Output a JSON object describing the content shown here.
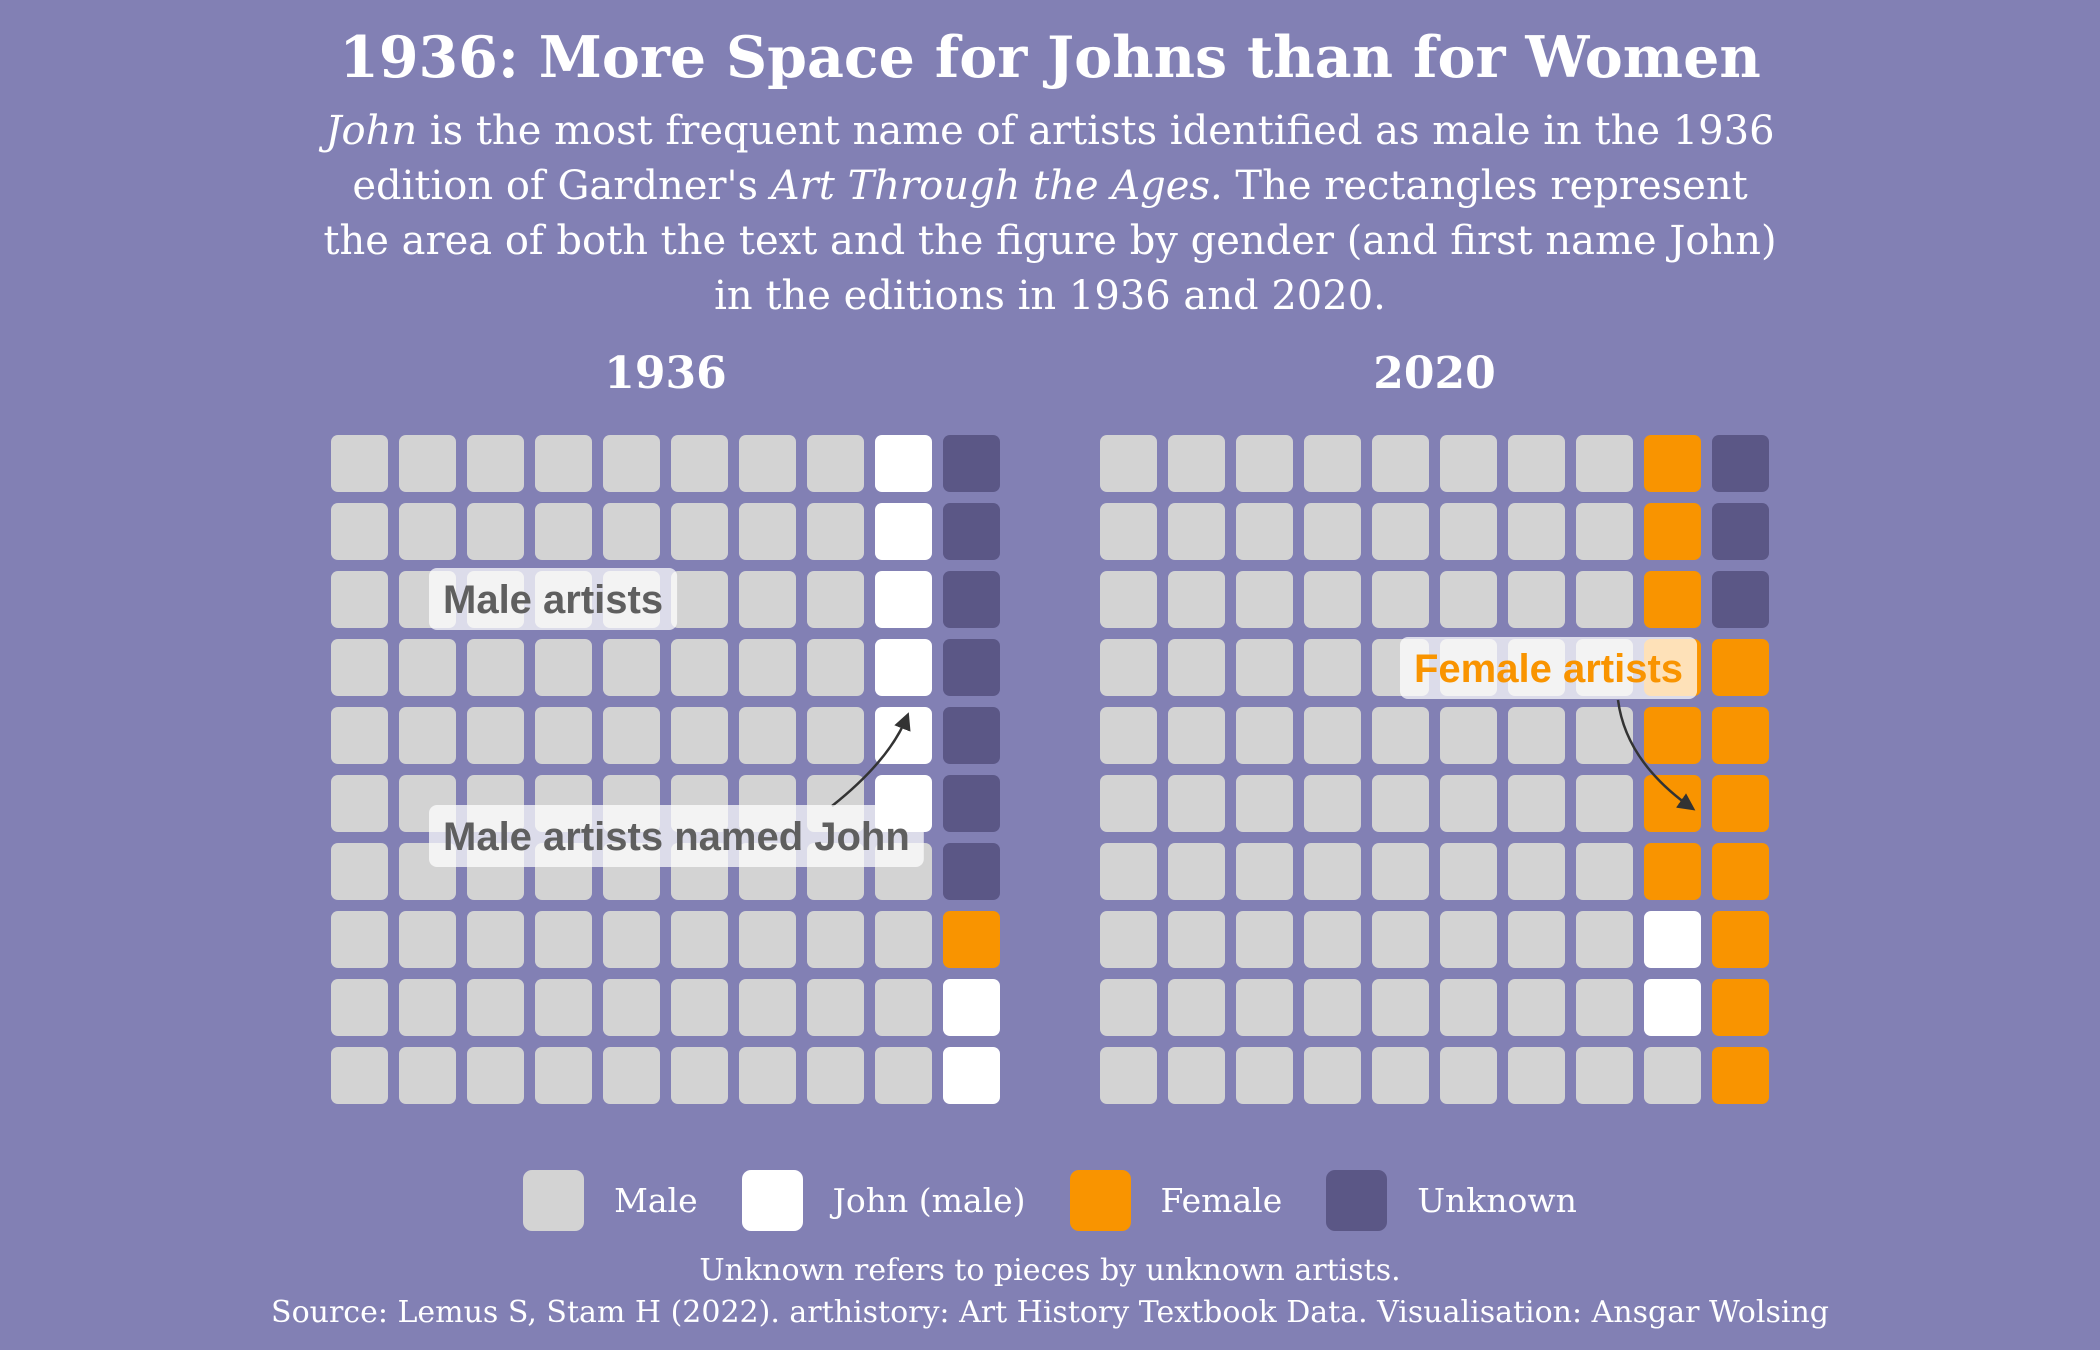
{
  "title": "1936: More Space for Johns than for Women",
  "subtitle": {
    "p1_italic": "John",
    "p2": " is the most frequent name of artists identified as male in the 1936 edition of Gardner's ",
    "p3_italic": "Art Through the Ages.",
    "p4": " The rectangles represent the area of both the text and the figure by gender (and first name John) in the editions in 1936 and 2020."
  },
  "colors": {
    "background": "#8280b4",
    "Male": "#d3d3d3",
    "John (male)": "#ffffff",
    "Female": "#f99400",
    "Unknown": "#5b5786",
    "annotation_male": "#5f5f5f",
    "annotation_female": "#f99400"
  },
  "chart_data": [
    {
      "type": "waffle",
      "title": "1936",
      "grid": {
        "rows": 10,
        "cols": 10
      },
      "categories": [
        "Male",
        "John (male)",
        "Female",
        "Unknown"
      ],
      "values": [
        84,
        8,
        1,
        7
      ],
      "annotations": [
        {
          "text": "Male artists",
          "target_category": "Male"
        },
        {
          "text": "Male artists named John",
          "target_category": "John (male)"
        }
      ]
    },
    {
      "type": "waffle",
      "title": "2020",
      "grid": {
        "rows": 10,
        "cols": 10
      },
      "categories": [
        "Male",
        "John (male)",
        "Female",
        "Unknown"
      ],
      "values": [
        81,
        2,
        14,
        3
      ],
      "annotations": [
        {
          "text": "Female artists",
          "target_category": "Female"
        }
      ]
    }
  ],
  "legend": {
    "items": [
      {
        "label": "Male",
        "category": "Male"
      },
      {
        "label": "John (male)",
        "category": "John (male)"
      },
      {
        "label": "Female",
        "category": "Female"
      },
      {
        "label": "Unknown",
        "category": "Unknown"
      }
    ]
  },
  "caption": {
    "line1": "Unknown refers to pieces by unknown artists.",
    "line2": "Source: Lemus S, Stam H (2022). arthistory: Art History Textbook Data. Visualisation: Ansgar Wolsing"
  }
}
